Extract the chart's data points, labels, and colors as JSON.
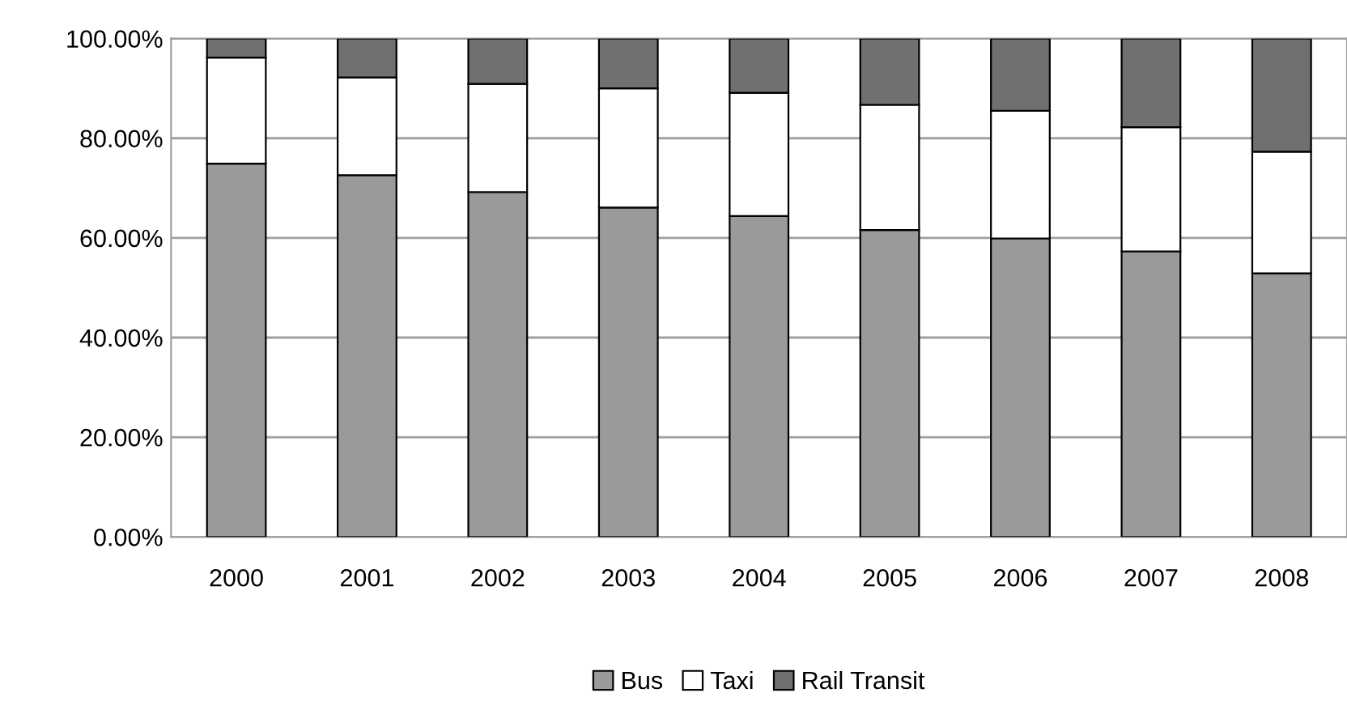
{
  "chart_data": {
    "type": "bar",
    "stacked": true,
    "categories": [
      "2000",
      "2001",
      "2002",
      "2003",
      "2004",
      "2005",
      "2006",
      "2007",
      "2008"
    ],
    "series": [
      {
        "name": "Bus",
        "color": "#9a9a9a",
        "values": [
          74.9,
          72.6,
          69.2,
          66.1,
          64.4,
          61.6,
          59.9,
          57.3,
          52.9
        ]
      },
      {
        "name": "Taxi",
        "color": "#ffffff",
        "values": [
          21.3,
          19.6,
          21.7,
          23.9,
          24.7,
          25.1,
          25.6,
          24.9,
          24.4
        ]
      },
      {
        "name": "Rail Transit",
        "color": "#707070",
        "values": [
          3.8,
          7.8,
          9.1,
          10.0,
          10.9,
          13.3,
          14.5,
          17.8,
          22.7
        ]
      }
    ],
    "ylim": [
      0,
      100
    ],
    "yticks": [
      {
        "value": 0,
        "label": "0.00%"
      },
      {
        "value": 20,
        "label": "20.00%"
      },
      {
        "value": 40,
        "label": "40.00%"
      },
      {
        "value": 60,
        "label": "60.00%"
      },
      {
        "value": 80,
        "label": "80.00%"
      },
      {
        "value": 100,
        "label": "100.00%"
      }
    ],
    "grid": "y",
    "legend": "bottom"
  }
}
